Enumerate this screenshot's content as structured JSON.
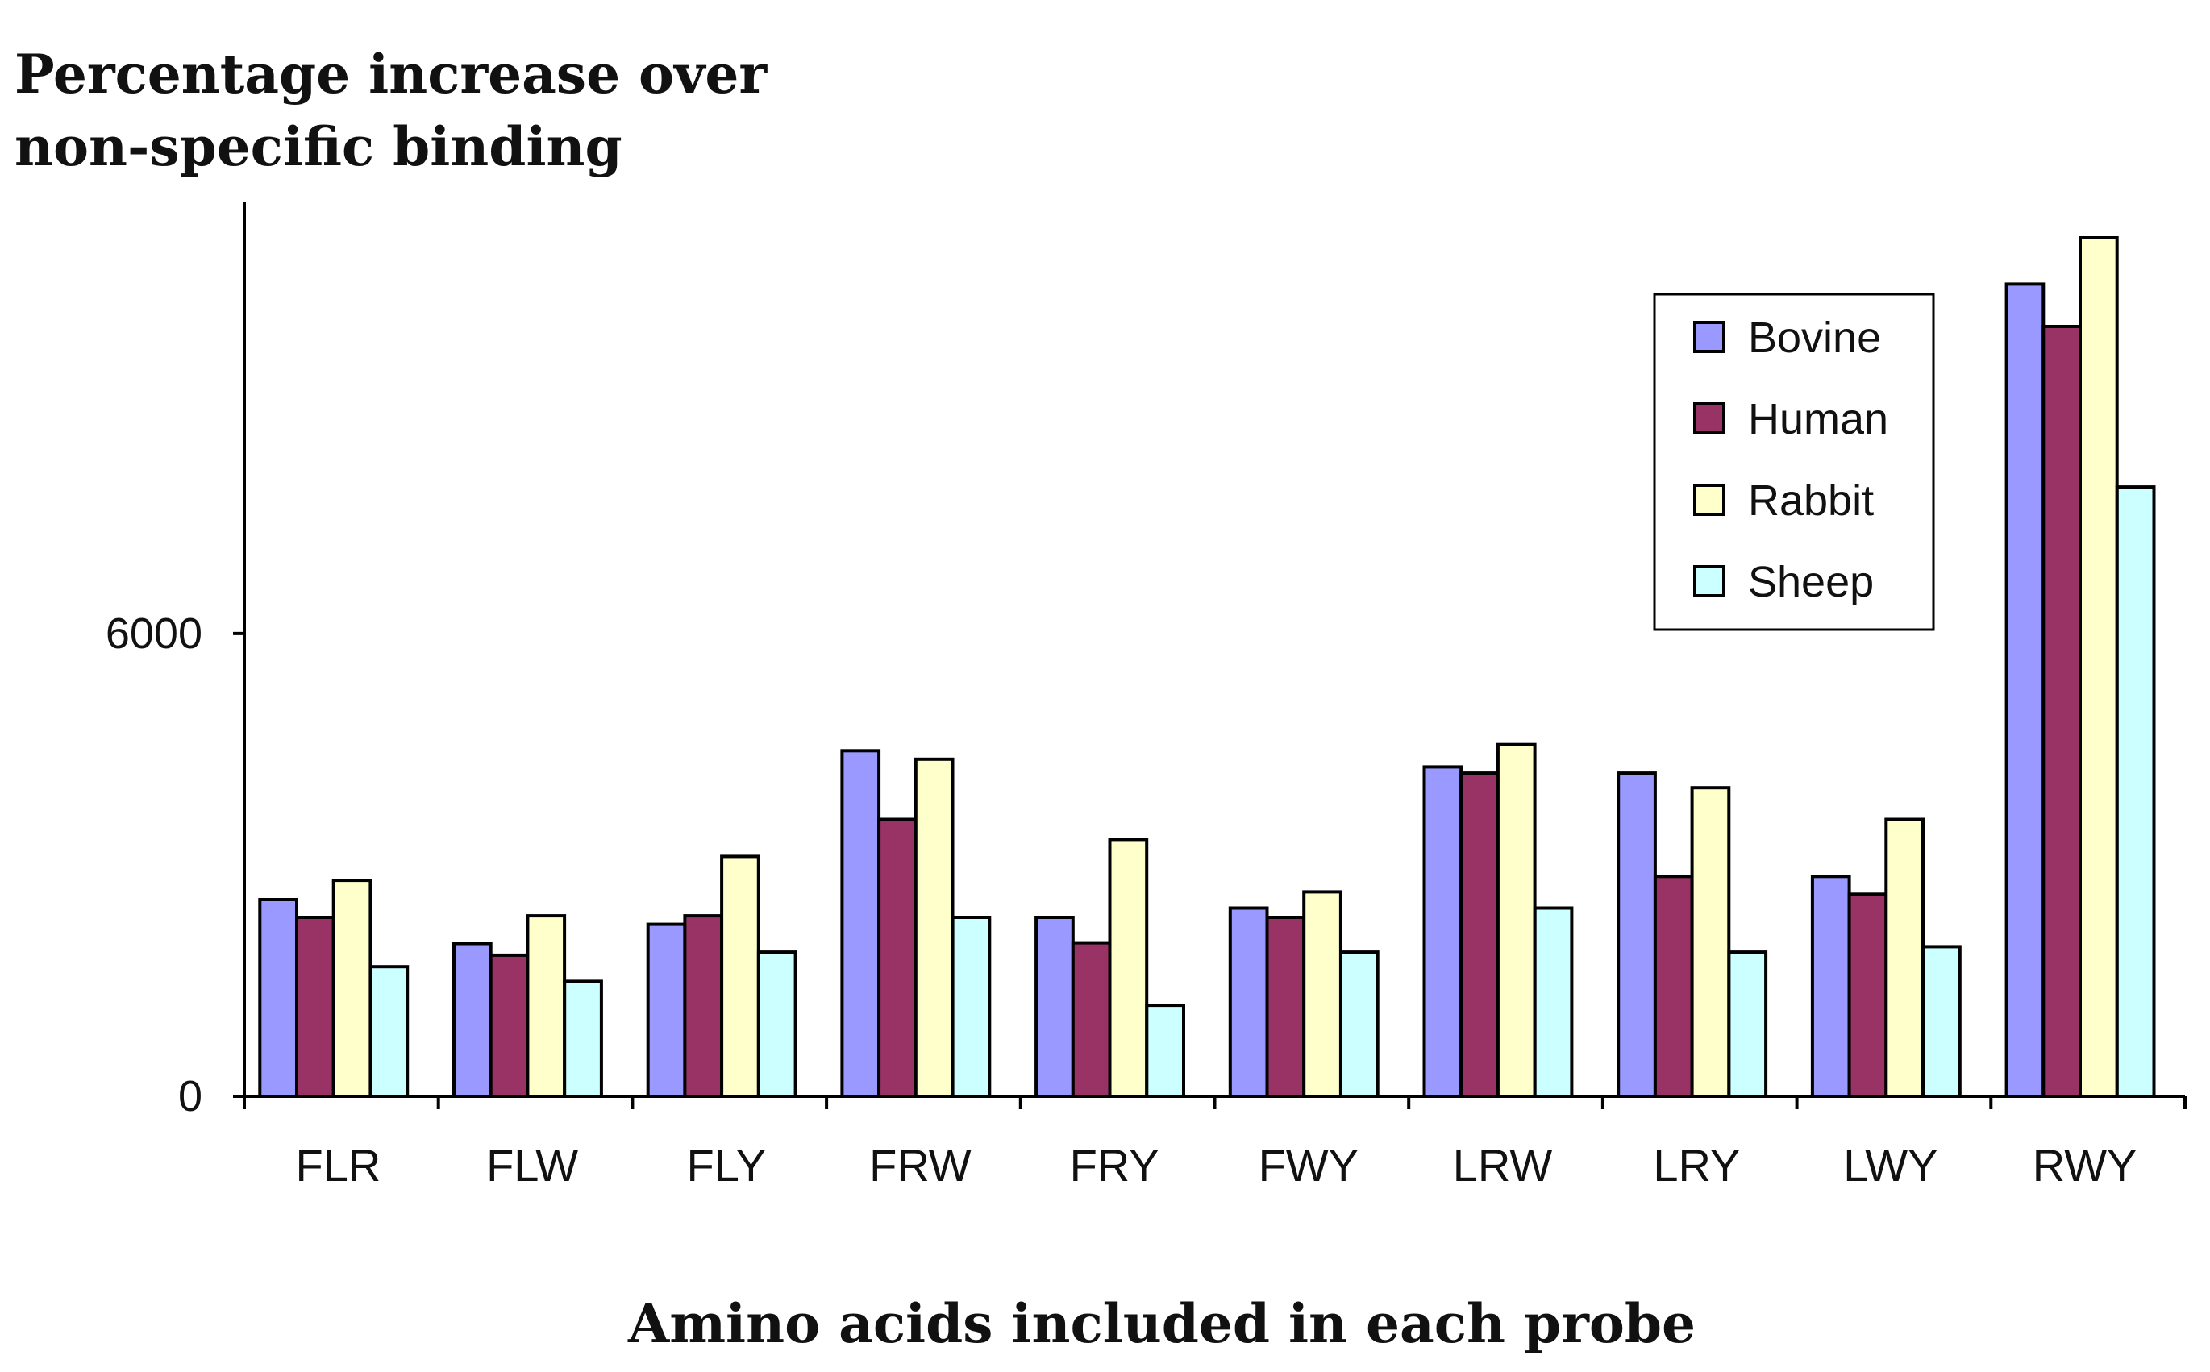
{
  "chart_data": {
    "type": "bar",
    "ylabel_lines": [
      "Percentage increase over",
      "non-specific binding"
    ],
    "xlabel": "Amino acids included in each probe",
    "categories": [
      "FLR",
      "FLW",
      "FLY",
      "FRW",
      "FRY",
      "FWY",
      "LRW",
      "LRY",
      "LWY",
      "RWY"
    ],
    "series": [
      {
        "name": "Bovine",
        "color": "#9999FF",
        "values": [
          2550,
          1980,
          2230,
          4480,
          2320,
          2440,
          4270,
          4190,
          2850,
          10530
        ]
      },
      {
        "name": "Human",
        "color": "#993366",
        "values": [
          2320,
          1830,
          2340,
          3590,
          1990,
          2320,
          4190,
          2850,
          2620,
          9980
        ]
      },
      {
        "name": "Rabbit",
        "color": "#FFFFCC",
        "values": [
          2800,
          2340,
          3110,
          4370,
          3330,
          2650,
          4560,
          4000,
          3590,
          11130
        ]
      },
      {
        "name": "Sheep",
        "color": "#CCFFFF",
        "values": [
          1680,
          1490,
          1870,
          2320,
          1180,
          1870,
          2440,
          1870,
          1940,
          7900
        ]
      }
    ],
    "yticks": [
      0,
      6000
    ],
    "ylim": [
      0,
      11600
    ],
    "legend_position": "top-right",
    "grid": false
  }
}
